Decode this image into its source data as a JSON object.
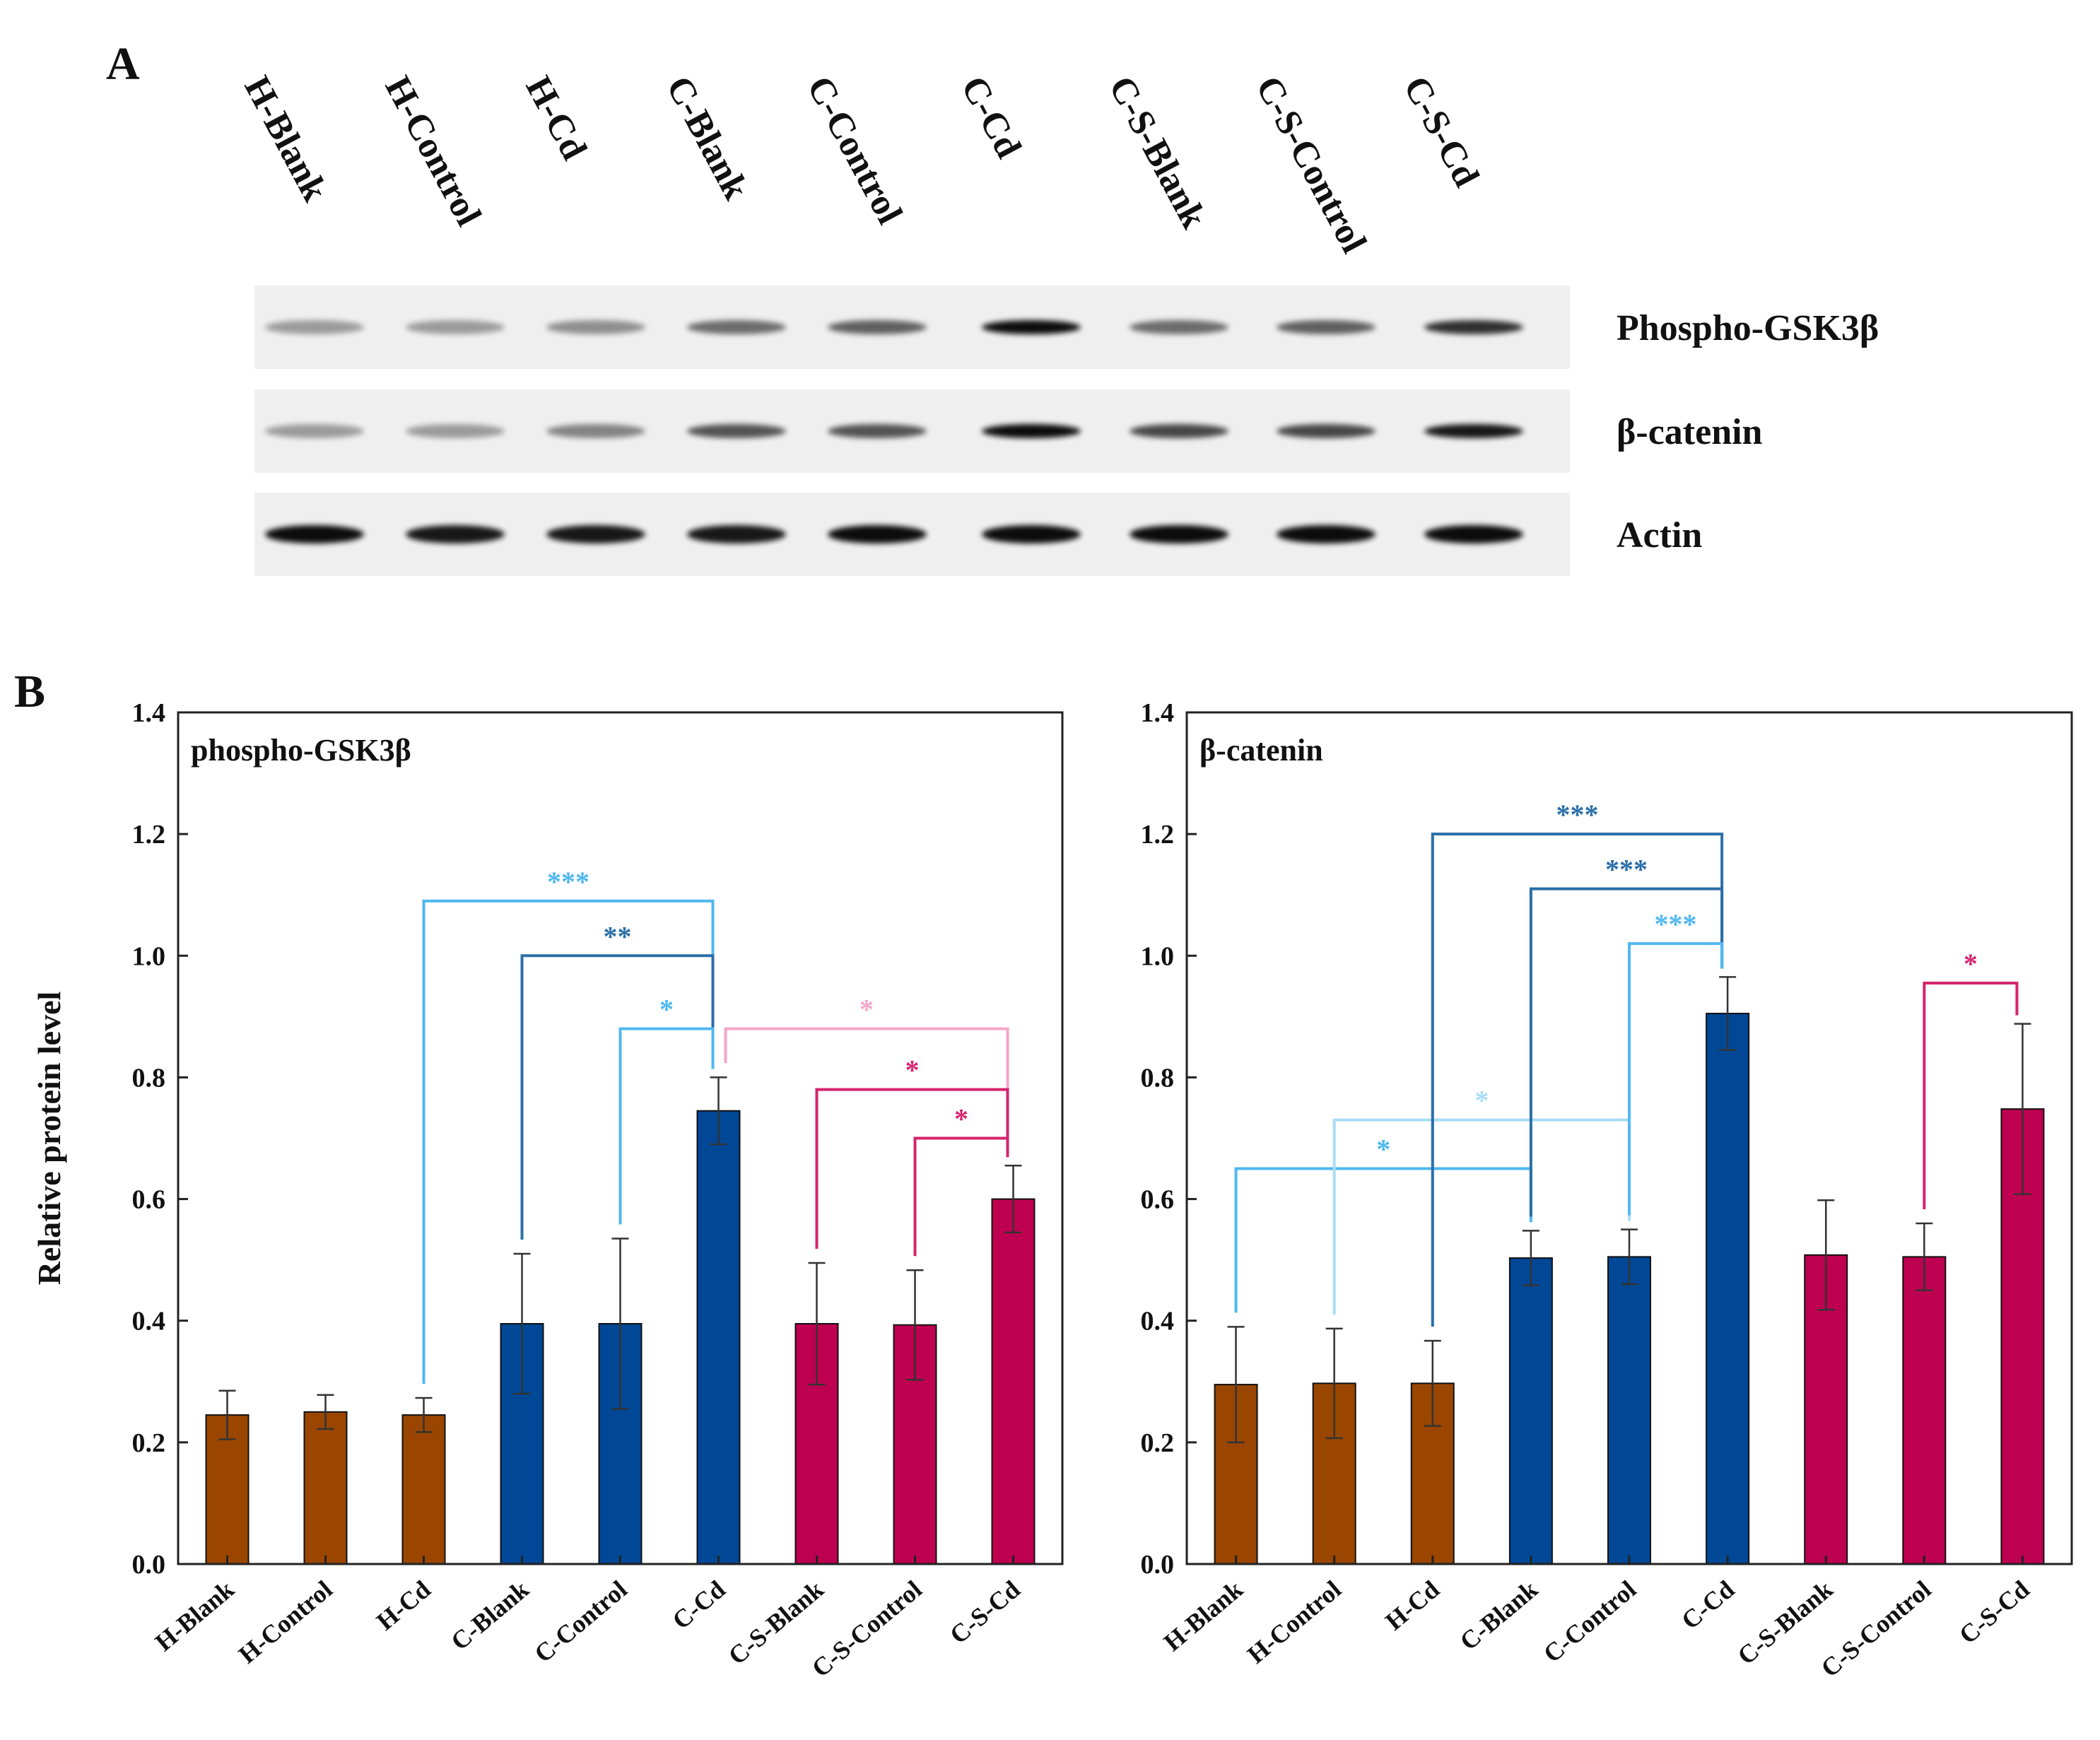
{
  "panel_a": {
    "label": "A",
    "lanes": [
      "H-Blank",
      "H-Control",
      "H-Cd",
      "C-Blank",
      "C-Control",
      "C-Cd",
      "C-S-Blank",
      "C-S-Control",
      "C-S-Cd"
    ],
    "bands": [
      "Phospho-GSK3β",
      "β-catenin",
      "Actin"
    ]
  },
  "panel_b_label": "B",
  "chart_data": [
    {
      "type": "bar",
      "title": "phospho-GSK3β",
      "y_label": "Relative protein level",
      "categories": [
        "H-Blank",
        "H-Control",
        "H-Cd",
        "C-Blank",
        "C-Control",
        "C-Cd",
        "C-S-Blank",
        "C-S-Control",
        "C-S-Cd"
      ],
      "values": [
        0.245,
        0.25,
        0.245,
        0.395,
        0.395,
        0.745,
        0.395,
        0.393,
        0.6
      ],
      "errors": [
        0.04,
        0.028,
        0.028,
        0.115,
        0.14,
        0.055,
        0.1,
        0.09,
        0.055
      ],
      "colors": [
        "#9a4600",
        "#9a4600",
        "#9a4600",
        "#004896",
        "#004896",
        "#004896",
        "#be0050",
        "#be0050",
        "#be0050"
      ],
      "ylim": [
        0,
        1.4
      ],
      "yticks": [
        {
          "value": 0,
          "label": "0.0"
        },
        0.2,
        0.4,
        0.6,
        0.8,
        {
          "value": 1,
          "label": "1.0"
        },
        1.2,
        1.4
      ],
      "brackets": [
        {
          "from": 2,
          "to": 5,
          "y": 1.09,
          "label": "***",
          "color": "#4fb8f0"
        },
        {
          "from": 3,
          "to": 5,
          "y": 1.0,
          "label": "**",
          "color": "#2a6fa8"
        },
        {
          "from": 4,
          "to": 5,
          "y": 0.88,
          "label": "*",
          "color": "#4fb8f0"
        },
        {
          "from": 5,
          "to": 8,
          "y": 0.88,
          "label": "*",
          "color": "#f5a6c8"
        },
        {
          "from": 6,
          "to": 8,
          "y": 0.78,
          "label": "*",
          "color": "#d6246e"
        },
        {
          "from": 7,
          "to": 8,
          "y": 0.7,
          "label": "*",
          "color": "#d6246e"
        }
      ]
    },
    {
      "type": "bar",
      "title": "β-catenin",
      "categories": [
        "H-Blank",
        "H-Control",
        "H-Cd",
        "C-Blank",
        "C-Control",
        "C-Cd",
        "C-S-Blank",
        "C-S-Control",
        "C-S-Cd"
      ],
      "values": [
        0.295,
        0.297,
        0.297,
        0.503,
        0.505,
        0.905,
        0.508,
        0.505,
        0.748
      ],
      "errors": [
        0.095,
        0.09,
        0.07,
        0.045,
        0.045,
        0.06,
        0.09,
        0.055,
        0.14
      ],
      "colors": [
        "#9a4600",
        "#9a4600",
        "#9a4600",
        "#004896",
        "#004896",
        "#004896",
        "#be0050",
        "#be0050",
        "#be0050"
      ],
      "ylim": [
        0,
        1.4
      ],
      "yticks": [
        {
          "value": 0,
          "label": "0.0"
        },
        0.2,
        0.4,
        0.6,
        0.8,
        {
          "value": 1,
          "label": "1.0"
        },
        1.2,
        1.4
      ],
      "brackets": [
        {
          "from": 0,
          "to": 3,
          "y": 0.65,
          "label": "*",
          "color": "#4fb8f0"
        },
        {
          "from": 1,
          "to": 4,
          "y": 0.73,
          "label": "*",
          "color": "#a8dcf6"
        },
        {
          "from": 2,
          "to": 5,
          "y": 1.2,
          "label": "***",
          "color": "#2a6fa8"
        },
        {
          "from": 3,
          "to": 5,
          "y": 1.11,
          "label": "***",
          "color": "#2a6fa8"
        },
        {
          "from": 4,
          "to": 5,
          "y": 1.02,
          "label": "***",
          "color": "#4fb8f0"
        },
        {
          "from": 7,
          "to": 8,
          "y": 0.955,
          "label": "*",
          "color": "#d6246e"
        }
      ]
    }
  ]
}
